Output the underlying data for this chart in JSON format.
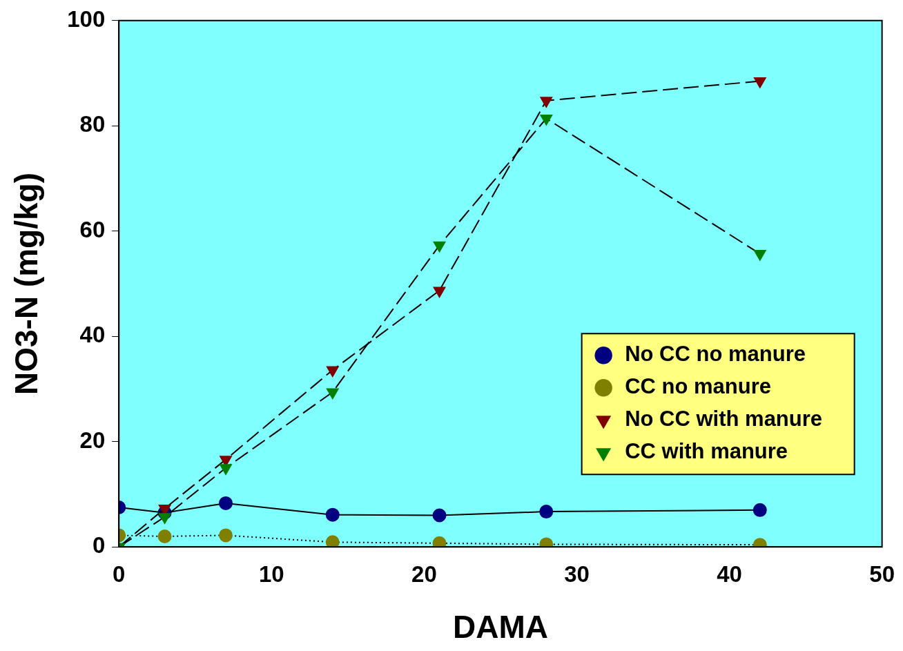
{
  "chart_data": {
    "type": "line",
    "xlabel": "DAMA",
    "ylabel": "NO3-N (mg/kg)",
    "xlim": [
      0,
      50
    ],
    "xticks": [
      0,
      10,
      20,
      30,
      40,
      50
    ],
    "ylim": [
      0,
      100
    ],
    "yticks": [
      0,
      20,
      40,
      60,
      80,
      100
    ],
    "grid": false,
    "legend": "bottom right",
    "x": [
      0,
      3,
      7,
      14,
      21,
      28,
      42
    ],
    "series": [
      {
        "name": "No CC no manure",
        "color": "#000080",
        "marker": "circle",
        "line_style": "solid",
        "values": [
          7.5,
          6.5,
          8.3,
          6.1,
          6.0,
          6.7,
          7.0
        ]
      },
      {
        "name": "CC no manure",
        "color": "#808000",
        "marker": "circle",
        "line_style": "dotted",
        "values": [
          2.2,
          2.0,
          2.2,
          0.9,
          0.7,
          0.5,
          0.4
        ]
      },
      {
        "name": "No CC with manure",
        "color": "#800000",
        "marker": "triangle",
        "line_style": "dashed",
        "values": [
          0,
          7.3,
          16.6,
          33.6,
          48.7,
          84.8,
          88.5
        ]
      },
      {
        "name": "CC with manure",
        "color": "#008000",
        "marker": "triangle",
        "line_style": "dashed",
        "values": [
          0,
          5.7,
          15.0,
          29.4,
          57.3,
          81.4,
          55.7
        ]
      }
    ]
  }
}
